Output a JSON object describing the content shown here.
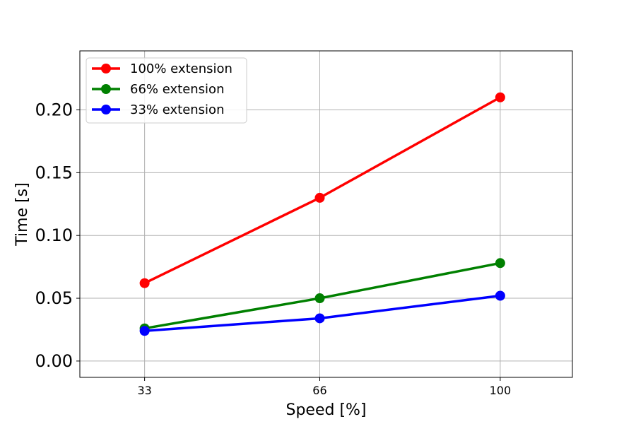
{
  "chart_data": {
    "type": "line",
    "title": "",
    "xlabel": "Speed [%]",
    "ylabel": "Time [s]",
    "x": [
      33,
      66,
      100
    ],
    "x_tick_labels": [
      "33",
      "66",
      "100"
    ],
    "y_ticks": [
      0.0,
      0.05,
      0.1,
      0.15,
      0.2
    ],
    "y_tick_labels": [
      "0.00",
      "0.05",
      "0.10",
      "0.15",
      "0.20"
    ],
    "xlim": [
      20.8,
      113.6
    ],
    "ylim": [
      -0.013,
      0.247
    ],
    "grid": true,
    "legend_position": "top-left",
    "series": [
      {
        "name": "100% extension",
        "color": "#ff0000",
        "values": [
          0.062,
          0.13,
          0.21
        ]
      },
      {
        "name": "66% extension",
        "color": "#008000",
        "values": [
          0.026,
          0.05,
          0.078
        ]
      },
      {
        "name": "33% extension",
        "color": "#0000ff",
        "values": [
          0.024,
          0.034,
          0.052
        ]
      }
    ]
  }
}
